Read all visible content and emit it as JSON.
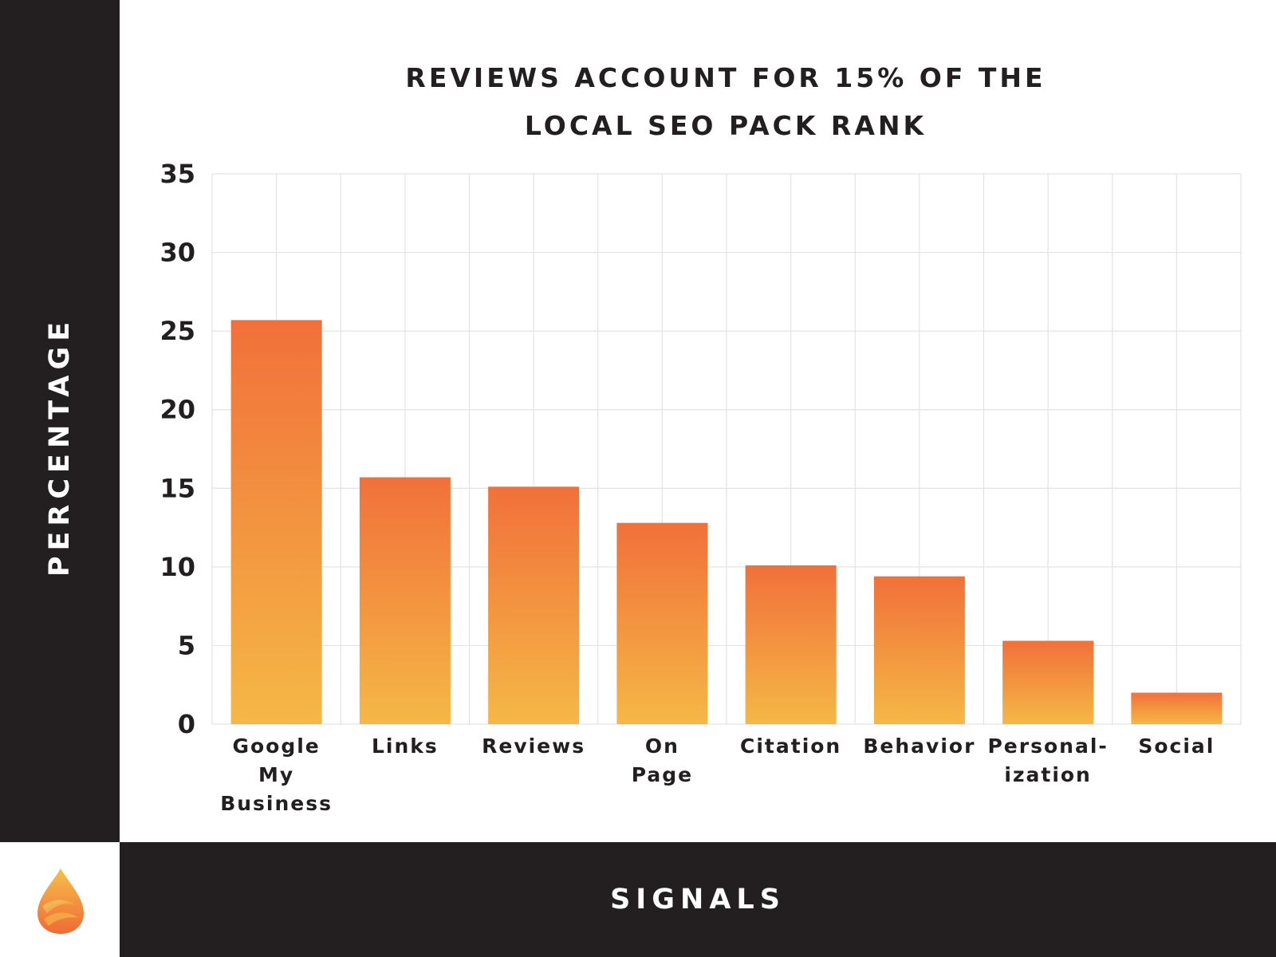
{
  "chart_data": {
    "type": "bar",
    "title_lines": [
      "REVIEWS ACCOUNT FOR 15% OF THE",
      "LOCAL SEO PACK RANK"
    ],
    "xlabel": "SIGNALS",
    "ylabel": "PERCENTAGE",
    "ylim": [
      0,
      35
    ],
    "yticks": [
      0,
      5,
      10,
      15,
      20,
      25,
      30,
      35
    ],
    "grid": true,
    "categories": [
      [
        "Google",
        "My",
        "Business"
      ],
      [
        "Links"
      ],
      [
        "Reviews"
      ],
      [
        "On",
        "Page"
      ],
      [
        "Citation"
      ],
      [
        "Behavior"
      ],
      [
        "Personal-",
        "ization"
      ],
      [
        "Social"
      ]
    ],
    "values": [
      25.7,
      15.7,
      15.1,
      12.8,
      10.1,
      9.4,
      5.3,
      2.0
    ],
    "bar_gradient": {
      "top": "#f1703a",
      "bottom": "#f5b846"
    }
  },
  "colors": {
    "frame": "#231f20",
    "grid": "#e3e3e3",
    "text": "#231f20"
  },
  "logo": {
    "icon": "flame-logo-icon"
  }
}
